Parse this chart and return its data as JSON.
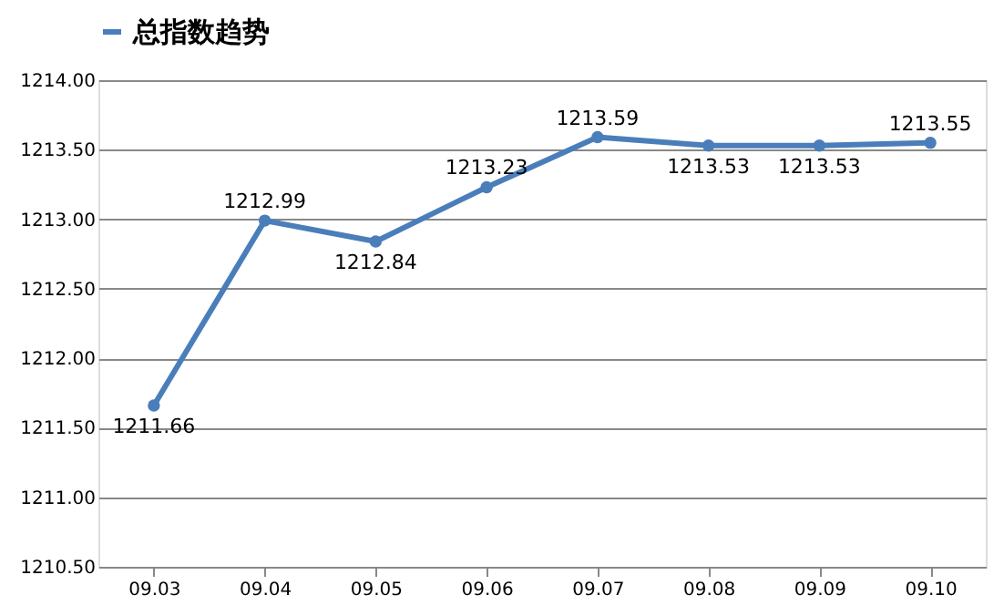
{
  "chart_data": {
    "type": "line",
    "categories": [
      "09.03",
      "09.04",
      "09.05",
      "09.06",
      "09.07",
      "09.08",
      "09.09",
      "09.10"
    ],
    "series": [
      {
        "name": "总指数趋势",
        "color": "#4a7ebb",
        "values": [
          1211.66,
          1212.99,
          1212.84,
          1213.23,
          1213.59,
          1213.53,
          1213.53,
          1213.55
        ]
      }
    ],
    "ylim": [
      1210.5,
      1214.0
    ],
    "yticks": [
      {
        "value": 1210.5,
        "label": "1210.50"
      },
      {
        "value": 1211.0,
        "label": "1211.00"
      },
      {
        "value": 1211.5,
        "label": "1211.50"
      },
      {
        "value": 1212.0,
        "label": "1212.00"
      },
      {
        "value": 1212.5,
        "label": "1212.50"
      },
      {
        "value": 1213.0,
        "label": "1213.00"
      },
      {
        "value": 1213.5,
        "label": "1213.50"
      },
      {
        "value": 1214.0,
        "label": "1214.00"
      }
    ],
    "grid": "y",
    "legend": "top",
    "marker": "circle",
    "line_style": "solid",
    "data_labels": true
  }
}
